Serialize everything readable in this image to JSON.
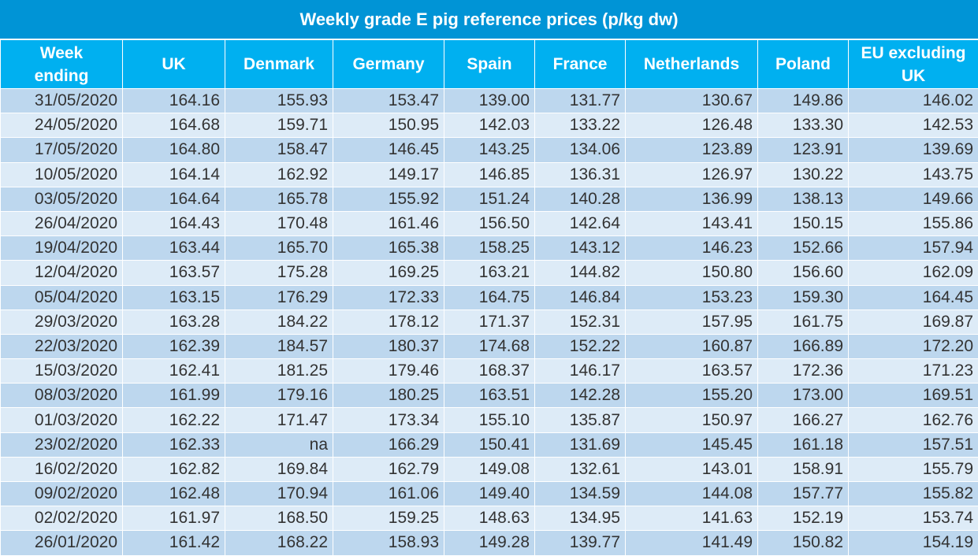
{
  "title": "Weekly grade E pig reference prices (p/kg dw)",
  "columns": [
    "Week ending",
    "UK",
    "Denmark",
    "Germany",
    "Spain",
    "France",
    "Netherlands",
    "Poland",
    "EU excluding UK"
  ],
  "rows": [
    [
      "31/05/2020",
      "164.16",
      "155.93",
      "153.47",
      "139.00",
      "131.77",
      "130.67",
      "149.86",
      "146.02"
    ],
    [
      "24/05/2020",
      "164.68",
      "159.71",
      "150.95",
      "142.03",
      "133.22",
      "126.48",
      "133.30",
      "142.53"
    ],
    [
      "17/05/2020",
      "164.80",
      "158.47",
      "146.45",
      "143.25",
      "134.06",
      "123.89",
      "123.91",
      "139.69"
    ],
    [
      "10/05/2020",
      "164.14",
      "162.92",
      "149.17",
      "146.85",
      "136.31",
      "126.97",
      "130.22",
      "143.75"
    ],
    [
      "03/05/2020",
      "164.64",
      "165.78",
      "155.92",
      "151.24",
      "140.28",
      "136.99",
      "138.13",
      "149.66"
    ],
    [
      "26/04/2020",
      "164.43",
      "170.48",
      "161.46",
      "156.50",
      "142.64",
      "143.41",
      "150.15",
      "155.86"
    ],
    [
      "19/04/2020",
      "163.44",
      "165.70",
      "165.38",
      "158.25",
      "143.12",
      "146.23",
      "152.66",
      "157.94"
    ],
    [
      "12/04/2020",
      "163.57",
      "175.28",
      "169.25",
      "163.21",
      "144.82",
      "150.80",
      "156.60",
      "162.09"
    ],
    [
      "05/04/2020",
      "163.15",
      "176.29",
      "172.33",
      "164.75",
      "146.84",
      "153.23",
      "159.30",
      "164.45"
    ],
    [
      "29/03/2020",
      "163.28",
      "184.22",
      "178.12",
      "171.37",
      "152.31",
      "157.95",
      "161.75",
      "169.87"
    ],
    [
      "22/03/2020",
      "162.39",
      "184.57",
      "180.37",
      "174.68",
      "152.22",
      "160.87",
      "166.89",
      "172.20"
    ],
    [
      "15/03/2020",
      "162.41",
      "181.25",
      "179.46",
      "168.37",
      "146.17",
      "163.57",
      "172.36",
      "171.23"
    ],
    [
      "08/03/2020",
      "161.99",
      "179.16",
      "180.25",
      "163.51",
      "142.28",
      "155.20",
      "173.00",
      "169.51"
    ],
    [
      "01/03/2020",
      "162.22",
      "171.47",
      "173.34",
      "155.10",
      "135.87",
      "150.97",
      "166.27",
      "162.76"
    ],
    [
      "23/02/2020",
      "162.33",
      "na",
      "166.29",
      "150.41",
      "131.69",
      "145.45",
      "161.18",
      "157.51"
    ],
    [
      "16/02/2020",
      "162.82",
      "169.84",
      "162.79",
      "149.08",
      "132.61",
      "143.01",
      "158.91",
      "155.79"
    ],
    [
      "09/02/2020",
      "162.48",
      "170.94",
      "161.06",
      "149.40",
      "134.59",
      "144.08",
      "157.77",
      "155.82"
    ],
    [
      "02/02/2020",
      "161.97",
      "168.50",
      "159.25",
      "148.63",
      "134.95",
      "141.63",
      "152.19",
      "153.74"
    ],
    [
      "26/01/2020",
      "161.42",
      "168.22",
      "158.93",
      "149.28",
      "139.77",
      "141.49",
      "150.82",
      "154.19"
    ]
  ],
  "colors": {
    "title_bg": "#0094D6",
    "header_bg": "#00B0F0",
    "row_dark": "#BDD7EE",
    "row_light": "#DDEBF7",
    "text": "#333333"
  }
}
